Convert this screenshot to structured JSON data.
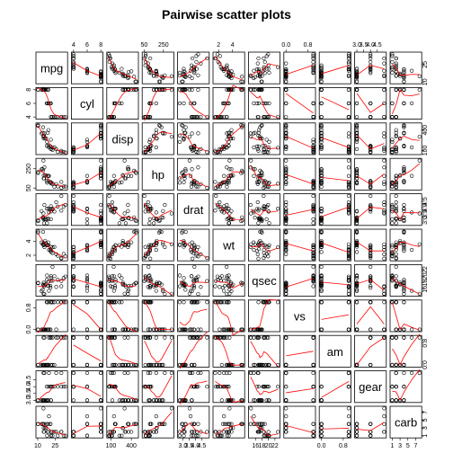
{
  "chart_data": {
    "type": "scatter",
    "title": "Pairwise scatter plots",
    "variables": [
      "mpg",
      "cyl",
      "disp",
      "hp",
      "drat",
      "wt",
      "qsec",
      "vs",
      "am",
      "gear",
      "carb"
    ],
    "ticks": {
      "mpg": {
        "values": [
          10,
          25
        ],
        "labels": [
          "10",
          "25"
        ]
      },
      "cyl": {
        "values": [
          4,
          6,
          8
        ],
        "labels": [
          "4",
          "6",
          "8"
        ]
      },
      "disp": {
        "values": [
          100,
          400
        ],
        "labels": [
          "100",
          "400"
        ]
      },
      "hp": {
        "values": [
          50,
          250
        ],
        "labels": [
          "50",
          "250"
        ]
      },
      "drat": {
        "values": [
          3.0,
          3.5,
          4.0,
          4.5
        ],
        "labels": [
          "3.0",
          "3.5",
          "4.0",
          "4.5"
        ]
      },
      "wt": {
        "values": [
          2,
          4
        ],
        "labels": [
          "2",
          "4"
        ]
      },
      "qsec": {
        "values": [
          16,
          18,
          20,
          22
        ],
        "labels": [
          "16",
          "18",
          "20",
          "22"
        ]
      },
      "vs": {
        "values": [
          0,
          0.8
        ],
        "labels": [
          "0.0",
          "0.8"
        ]
      },
      "am": {
        "values": [
          0,
          0.8
        ],
        "labels": [
          "0.0",
          "0.8"
        ]
      },
      "gear": {
        "values": [
          3.0,
          3.5,
          4.0,
          4.5
        ],
        "labels": [
          "3.0",
          "3.5",
          "4.0",
          "4.5"
        ]
      },
      "carb": {
        "values": [
          1,
          3,
          5,
          7
        ],
        "labels": [
          "1",
          "3",
          "5",
          "7"
        ]
      }
    },
    "ranges": {
      "mpg": [
        10.4,
        33.9
      ],
      "cyl": [
        4,
        8
      ],
      "disp": [
        71.1,
        472
      ],
      "hp": [
        52,
        335
      ],
      "drat": [
        2.76,
        4.93
      ],
      "wt": [
        1.513,
        5.424
      ],
      "qsec": [
        14.5,
        22.9
      ],
      "vs": [
        0,
        1
      ],
      "am": [
        0,
        1
      ],
      "gear": [
        3,
        5
      ],
      "carb": [
        1,
        8
      ]
    },
    "data": {
      "mpg": [
        21,
        21,
        22.8,
        21.4,
        18.7,
        18.1,
        14.3,
        24.4,
        22.8,
        19.2,
        17.8,
        16.4,
        17.3,
        15.2,
        10.4,
        10.4,
        14.7,
        32.4,
        30.4,
        33.9,
        21.5,
        15.5,
        15.2,
        13.3,
        19.2,
        27.3,
        26,
        30.4,
        15.8,
        19.7,
        15,
        21.4
      ],
      "cyl": [
        6,
        6,
        4,
        6,
        8,
        6,
        8,
        4,
        4,
        6,
        6,
        8,
        8,
        8,
        8,
        8,
        8,
        4,
        4,
        4,
        4,
        8,
        8,
        8,
        8,
        4,
        4,
        4,
        8,
        6,
        8,
        4
      ],
      "disp": [
        160,
        160,
        108,
        258,
        360,
        225,
        360,
        146.7,
        140.8,
        167.6,
        167.6,
        275.8,
        275.8,
        275.8,
        472,
        460,
        440,
        78.7,
        75.7,
        71.1,
        120.1,
        318,
        304,
        350,
        400,
        79,
        120.3,
        95.1,
        351,
        145,
        301,
        121
      ],
      "hp": [
        110,
        110,
        93,
        110,
        175,
        105,
        245,
        62,
        95,
        123,
        123,
        180,
        180,
        180,
        205,
        215,
        230,
        66,
        52,
        65,
        97,
        150,
        150,
        245,
        175,
        66,
        91,
        113,
        264,
        175,
        335,
        109
      ],
      "drat": [
        3.9,
        3.9,
        3.85,
        3.08,
        3.15,
        2.76,
        3.21,
        3.69,
        3.92,
        3.92,
        3.92,
        3.07,
        3.07,
        3.07,
        2.93,
        3,
        3.23,
        4.08,
        4.93,
        4.22,
        3.7,
        2.76,
        3.15,
        3.73,
        3.08,
        4.08,
        4.43,
        3.77,
        4.22,
        3.62,
        3.54,
        4.11
      ],
      "wt": [
        2.62,
        2.875,
        2.32,
        3.215,
        3.44,
        3.46,
        3.57,
        3.19,
        3.15,
        3.44,
        3.44,
        4.07,
        3.73,
        3.78,
        5.25,
        5.424,
        5.345,
        2.2,
        1.615,
        1.835,
        2.465,
        3.52,
        3.435,
        3.84,
        3.845,
        1.935,
        2.14,
        1.513,
        3.17,
        2.77,
        3.57,
        2.78
      ],
      "qsec": [
        16.46,
        17.02,
        18.61,
        19.44,
        17.02,
        20.22,
        15.84,
        20,
        22.9,
        18.3,
        18.9,
        17.4,
        17.6,
        18,
        17.98,
        17.82,
        17.42,
        19.47,
        18.52,
        19.9,
        20.01,
        16.87,
        17.3,
        15.41,
        17.05,
        18.9,
        16.7,
        16.9,
        14.5,
        15.5,
        14.6,
        18.6
      ],
      "vs": [
        0,
        0,
        1,
        1,
        0,
        1,
        0,
        1,
        1,
        1,
        1,
        0,
        0,
        0,
        0,
        0,
        0,
        1,
        1,
        1,
        1,
        0,
        0,
        0,
        0,
        1,
        0,
        1,
        0,
        0,
        0,
        1
      ],
      "am": [
        1,
        1,
        1,
        0,
        0,
        0,
        0,
        0,
        0,
        0,
        0,
        0,
        0,
        0,
        0,
        0,
        0,
        1,
        1,
        1,
        0,
        0,
        0,
        0,
        0,
        1,
        1,
        1,
        1,
        1,
        1,
        1
      ],
      "gear": [
        4,
        4,
        4,
        3,
        3,
        3,
        3,
        4,
        4,
        4,
        4,
        3,
        3,
        3,
        3,
        3,
        3,
        4,
        4,
        4,
        3,
        3,
        3,
        3,
        3,
        4,
        5,
        5,
        5,
        5,
        5,
        4
      ],
      "carb": [
        4,
        4,
        1,
        1,
        2,
        1,
        4,
        2,
        2,
        4,
        4,
        3,
        3,
        3,
        4,
        4,
        4,
        1,
        2,
        1,
        1,
        2,
        2,
        4,
        2,
        1,
        2,
        2,
        4,
        6,
        8,
        2
      ]
    },
    "smoother": "lowess",
    "smoother_color": "#ff0000",
    "point_color": "#000000"
  }
}
